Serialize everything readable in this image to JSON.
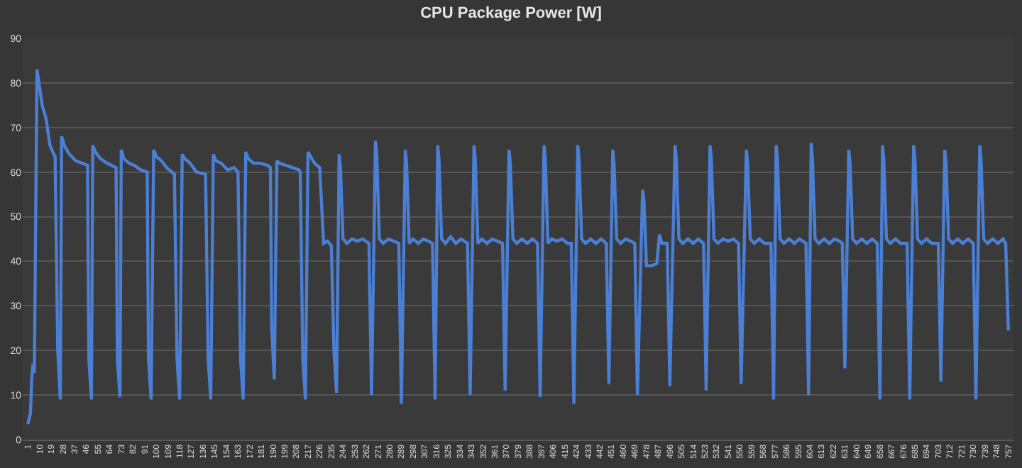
{
  "chart_data": {
    "type": "line",
    "title": "CPU Package Power [W]",
    "xlim": [
      -3,
      761
    ],
    "xticks": [
      1,
      10,
      19,
      28,
      37,
      46,
      55,
      64,
      73,
      82,
      91,
      100,
      109,
      118,
      127,
      136,
      145,
      154,
      163,
      172,
      181,
      190,
      199,
      208,
      217,
      226,
      235,
      244,
      253,
      262,
      271,
      280,
      289,
      298,
      307,
      316,
      325,
      334,
      343,
      352,
      361,
      370,
      379,
      388,
      397,
      406,
      415,
      424,
      433,
      442,
      451,
      460,
      469,
      478,
      487,
      496,
      505,
      514,
      523,
      532,
      541,
      550,
      559,
      568,
      577,
      586,
      595,
      604,
      613,
      622,
      631,
      640,
      649,
      658,
      667,
      676,
      685,
      694,
      703,
      712,
      721,
      730,
      739,
      748,
      757
    ],
    "ylim": [
      0,
      90
    ],
    "yticks": [
      0,
      10,
      20,
      30,
      40,
      50,
      60,
      70,
      80,
      90
    ],
    "grid": "y",
    "legend": false,
    "marker": "none",
    "line_style": "solid",
    "series": [
      {
        "color": "#4a7fd4",
        "x": [
          1,
          3,
          4,
          5,
          6,
          8,
          10,
          12,
          15,
          18,
          21,
          22,
          24,
          26,
          27,
          29,
          33,
          38,
          43,
          47,
          48,
          50,
          51,
          53,
          57,
          62,
          69,
          70,
          72,
          73,
          75,
          79,
          83,
          88,
          93,
          94,
          96,
          98,
          100,
          104,
          108,
          114,
          116,
          118,
          120,
          122,
          126,
          131,
          138,
          140,
          142,
          144,
          146,
          150,
          155,
          160,
          163,
          165,
          167,
          169,
          171,
          175,
          180,
          186,
          188,
          189,
          191,
          193,
          195,
          200,
          205,
          210,
          211,
          213,
          215,
          217,
          219,
          222,
          226,
          229,
          232,
          235,
          237,
          239,
          241,
          242,
          244,
          247,
          251,
          255,
          259,
          264,
          266,
          269,
          270,
          272,
          275,
          279,
          283,
          287,
          289,
          292,
          293,
          295,
          298,
          302,
          306,
          310,
          313,
          315,
          317,
          318,
          320,
          323,
          327,
          331,
          335,
          340,
          342,
          345,
          346,
          348,
          351,
          355,
          359,
          363,
          367,
          369,
          372,
          373,
          375,
          378,
          382,
          386,
          390,
          394,
          396,
          399,
          400,
          402,
          405,
          409,
          413,
          417,
          420,
          422,
          425,
          426,
          428,
          431,
          435,
          439,
          443,
          447,
          449,
          452,
          453,
          455,
          458,
          462,
          466,
          469,
          471,
          475,
          476,
          478,
          482,
          486,
          488,
          490,
          494,
          496,
          500,
          501,
          503,
          506,
          510,
          514,
          518,
          522,
          524,
          527,
          528,
          530,
          533,
          537,
          541,
          545,
          549,
          551,
          555,
          556,
          558,
          561,
          565,
          569,
          574,
          576,
          578,
          579,
          581,
          584,
          588,
          592,
          596,
          601,
          603,
          605,
          606,
          608,
          611,
          615,
          619,
          623,
          627,
          629,
          631,
          634,
          635,
          637,
          640,
          644,
          648,
          652,
          656,
          658,
          660,
          661,
          663,
          666,
          670,
          674,
          679,
          681,
          684,
          685,
          687,
          690,
          694,
          698,
          703,
          705,
          708,
          709,
          711,
          714,
          718,
          722,
          726,
          730,
          732,
          735,
          736,
          738,
          741,
          745,
          749,
          753,
          755,
          757
        ],
        "values": [
          3.5,
          6,
          14,
          17,
          15,
          83,
          79,
          75,
          72,
          66,
          64,
          63.5,
          20,
          9,
          68,
          66,
          64,
          62.5,
          62,
          61.5,
          18,
          9,
          66,
          64.5,
          63,
          62,
          61,
          18,
          9.5,
          65,
          63,
          62,
          61.5,
          60.5,
          60,
          18,
          9,
          65,
          63.5,
          62.5,
          61,
          59.5,
          18,
          9,
          64,
          63,
          62,
          60,
          59.5,
          18,
          9,
          64,
          62.5,
          62,
          60.5,
          61,
          60,
          18,
          9,
          64.5,
          63,
          62,
          62,
          61.5,
          61,
          25,
          13.5,
          62.5,
          62,
          61.5,
          61,
          60.5,
          60,
          18,
          9,
          64.5,
          63.5,
          62,
          61,
          44,
          44.5,
          43.5,
          20,
          10.5,
          64,
          61,
          45,
          44,
          45,
          44.5,
          45,
          44,
          10,
          67,
          64,
          45,
          44,
          45,
          44.5,
          44,
          8,
          65,
          62,
          44,
          45,
          44,
          45,
          44.5,
          44,
          9,
          66,
          63,
          45,
          44,
          45.5,
          44,
          45,
          44,
          10,
          66,
          63,
          44,
          45,
          44,
          45,
          44.5,
          44,
          11,
          65,
          62,
          45,
          44,
          45,
          44,
          45,
          44,
          9.5,
          66,
          63,
          44,
          45,
          44.5,
          45,
          44,
          44,
          8,
          66,
          63,
          45,
          44,
          45,
          44,
          45,
          44,
          12.5,
          65,
          62,
          45,
          44,
          45,
          44.5,
          44,
          10,
          56,
          54,
          39,
          39,
          39.5,
          46,
          44,
          44,
          12,
          66,
          63,
          45,
          44,
          45,
          44,
          45,
          44,
          11,
          66,
          63,
          45,
          44,
          45,
          44.5,
          45,
          44,
          12.5,
          65,
          62,
          45,
          44,
          45,
          44,
          44,
          9,
          66,
          63,
          45,
          44,
          45,
          44,
          45,
          44,
          10,
          66.5,
          63,
          45,
          44,
          45,
          44,
          45,
          44.5,
          44,
          16,
          65,
          62,
          45,
          44,
          45,
          44,
          45,
          44,
          9,
          66,
          63,
          45,
          44,
          45,
          44,
          44,
          9,
          66,
          63,
          45,
          44,
          45,
          44,
          44,
          13,
          65,
          62,
          45,
          44,
          45,
          44,
          45,
          44,
          9,
          66,
          63,
          45,
          44,
          45,
          44,
          45,
          44,
          24.5
        ]
      }
    ]
  }
}
